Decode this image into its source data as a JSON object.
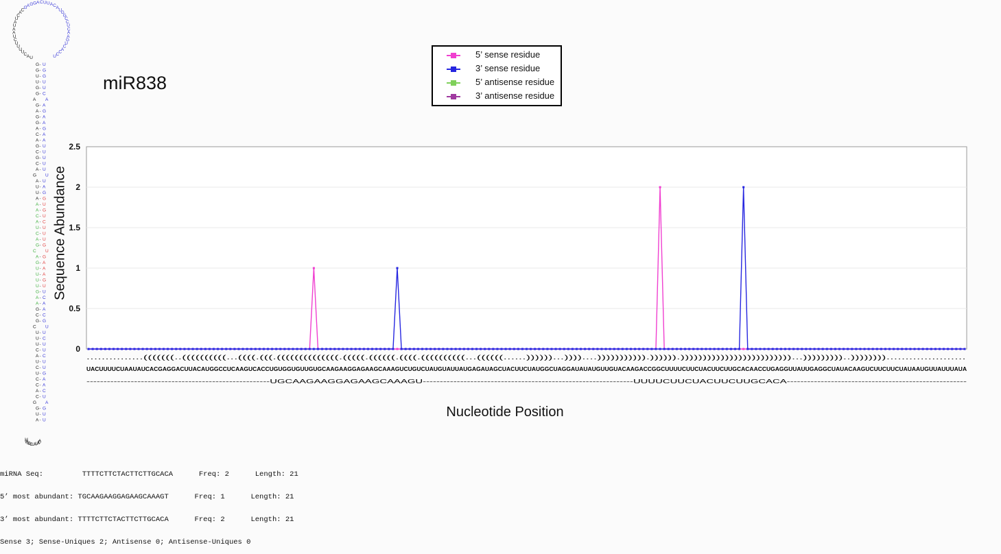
{
  "title": "miR838",
  "legend": [
    {
      "label": "5’ sense residue",
      "color": "#f03fd0"
    },
    {
      "label": "3’ sense residue",
      "color": "#2626e0"
    },
    {
      "label": "5’ antisense residue",
      "color": "#7fd05a"
    },
    {
      "label": "3’ antisense residue",
      "color": "#a03aa0"
    }
  ],
  "chart_data": {
    "type": "line",
    "xlabel": "Nucleotide Position",
    "ylabel": "Sequence Abundance",
    "ylim": [
      0,
      2.5
    ],
    "yticks": [
      "0",
      "0.5",
      "1",
      "1.5",
      "2",
      "2.5"
    ],
    "grid": true,
    "legend_position": "top-center",
    "sequence_length": 211,
    "structure": "...............(((((((..((((((((((...((((.(((.((((((((((((((.(((((.((((((.((((.((((((((((...((((((......))))))...))))....))))))))))).)))))).)))))))))))))))))))))))))...)))))))))..)))))))).....................",
    "sequence": "UACUUUUCUAAUAUCACGAGGACUUACAUGGCCUCAAGUCACCUGUGGUGUUGUGCAAGAAGGAGAAGCAAAGUCUGUCUAUGUAUUAUGAGAUAGCUACUUCUAUGGCUAGGAUAUAUGUUGUACAAGACCGGCUUUUCUUCUACUUCUUGCACAACCUGAGGUUAUUGAGGCUAUACAAGUCUUCUUCUAUAAUGUUAUUUAUA",
    "aligned_reads": [
      {
        "sequence": "UGCAAGAAGGAGAAGCAAAGU",
        "start": 54
      },
      {
        "sequence": "UUUUCUUCUACUUCUUGCACA",
        "start": 137
      }
    ],
    "series": [
      {
        "name": "5’ sense residue",
        "color": "#f03fd0",
        "points": [
          {
            "x": 54,
            "y": 1
          },
          {
            "x": 137,
            "y": 2
          }
        ]
      },
      {
        "name": "3’ sense residue",
        "color": "#2626e0",
        "points": [
          {
            "x": 74,
            "y": 1
          },
          {
            "x": 157,
            "y": 2
          }
        ]
      },
      {
        "name": "5’ antisense residue",
        "color": "#7fd05a",
        "points": []
      },
      {
        "name": "3’ antisense residue",
        "color": "#a03aa0",
        "points": []
      }
    ]
  },
  "hairpin_colors": {
    "base": "#222222",
    "star": "#3a3ad8",
    "mature": "#3fb03f",
    "mature_alt": "#e04040"
  },
  "footer": {
    "lines": [
      "miRNA Seq:         TTTTCTTCTACTTCTTGCACA      Freq: 2      Length: 21",
      "5’ most abundant: TGCAAGAAGGAGAAGCAAAGT      Freq: 1      Length: 21",
      "3’ most abundant: TTTTCTTCTACTTCTTGCACA      Freq: 2      Length: 21",
      "Sense 3; Sense-Uniques 2; Antisense 0; Antisense-Uniques 0"
    ]
  }
}
